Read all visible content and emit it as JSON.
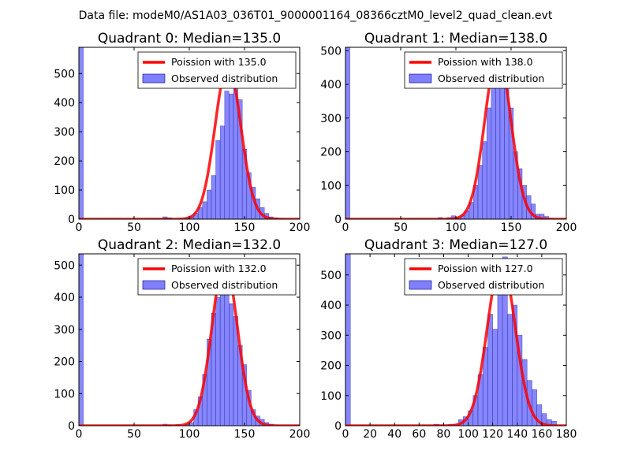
{
  "figure": {
    "suptitle": "Data file: modeM0/AS1A03_036T01_9000001164_08366cztM0_level2_quad_clean.evt"
  },
  "chart_data": [
    {
      "type": "bar",
      "title": "Quadrant 0: Median=135.0",
      "xlim": [
        0,
        200
      ],
      "ylim": [
        0,
        590
      ],
      "xticks": [
        0,
        50,
        100,
        150,
        200
      ],
      "xtick_labels": [
        "0",
        "50",
        "100",
        "150",
        "200"
      ],
      "yticks": [
        0,
        100,
        200,
        300,
        400,
        500
      ],
      "ytick_labels": [
        "0",
        "100",
        "200",
        "300",
        "400",
        "500"
      ],
      "legend": [
        "Poission with 135.0",
        "Observed distribution"
      ],
      "legend_position": "top-right",
      "bar_color": "#7f7fff",
      "line_color": "#ff0000",
      "bin_width": 4,
      "bins": [
        [
          0,
          590
        ],
        [
          76,
          8
        ],
        [
          80,
          5
        ],
        [
          96,
          3
        ],
        [
          100,
          8
        ],
        [
          104,
          20
        ],
        [
          108,
          40
        ],
        [
          112,
          60
        ],
        [
          116,
          100
        ],
        [
          120,
          150
        ],
        [
          124,
          270
        ],
        [
          128,
          320
        ],
        [
          132,
          440
        ],
        [
          136,
          430
        ],
        [
          140,
          500
        ],
        [
          144,
          410
        ],
        [
          148,
          240
        ],
        [
          152,
          160
        ],
        [
          156,
          110
        ],
        [
          160,
          70
        ],
        [
          164,
          40
        ],
        [
          168,
          20
        ],
        [
          172,
          8
        ],
        [
          176,
          5
        ],
        [
          180,
          2
        ]
      ],
      "poisson_mean": 135.0,
      "poisson_peak": 530
    },
    {
      "type": "bar",
      "title": "Quadrant 1: Median=138.0",
      "xlim": [
        0,
        200
      ],
      "ylim": [
        0,
        510
      ],
      "xticks": [
        0,
        50,
        100,
        150,
        200
      ],
      "xtick_labels": [
        "0",
        "50",
        "100",
        "150",
        "200"
      ],
      "yticks": [
        0,
        100,
        200,
        300,
        400,
        500
      ],
      "ytick_labels": [
        "0",
        "100",
        "200",
        "300",
        "400",
        "500"
      ],
      "legend": [
        "Poission with 138.0",
        "Observed distribution"
      ],
      "legend_position": "top-right",
      "bar_color": "#7f7fff",
      "line_color": "#ff0000",
      "bin_width": 4,
      "bins": [
        [
          0,
          510
        ],
        [
          84,
          5
        ],
        [
          92,
          5
        ],
        [
          96,
          10
        ],
        [
          100,
          5
        ],
        [
          104,
          12
        ],
        [
          108,
          25
        ],
        [
          112,
          50
        ],
        [
          116,
          100
        ],
        [
          120,
          160
        ],
        [
          124,
          230
        ],
        [
          128,
          330
        ],
        [
          132,
          430
        ],
        [
          136,
          470
        ],
        [
          140,
          430
        ],
        [
          144,
          490
        ],
        [
          148,
          330
        ],
        [
          152,
          200
        ],
        [
          156,
          150
        ],
        [
          160,
          100
        ],
        [
          164,
          70
        ],
        [
          168,
          45
        ],
        [
          172,
          15
        ],
        [
          176,
          15
        ],
        [
          180,
          8
        ],
        [
          184,
          3
        ]
      ],
      "poisson_mean": 138.0,
      "poisson_peak": 490
    },
    {
      "type": "bar",
      "title": "Quadrant 2: Median=132.0",
      "xlim": [
        0,
        200
      ],
      "ylim": [
        0,
        535
      ],
      "xticks": [
        0,
        50,
        100,
        150,
        200
      ],
      "xtick_labels": [
        "0",
        "50",
        "100",
        "150",
        "200"
      ],
      "yticks": [
        0,
        100,
        200,
        300,
        400,
        500
      ],
      "ytick_labels": [
        "0",
        "100",
        "200",
        "300",
        "400",
        "500"
      ],
      "legend": [
        "Poission with 132.0",
        "Observed distribution"
      ],
      "legend_position": "top-right",
      "bar_color": "#7f7fff",
      "line_color": "#ff0000",
      "bin_width": 4,
      "bins": [
        [
          0,
          535
        ],
        [
          76,
          5
        ],
        [
          80,
          3
        ],
        [
          88,
          3
        ],
        [
          96,
          5
        ],
        [
          100,
          10
        ],
        [
          104,
          50
        ],
        [
          108,
          90
        ],
        [
          112,
          160
        ],
        [
          116,
          270
        ],
        [
          120,
          350
        ],
        [
          124,
          400
        ],
        [
          128,
          460
        ],
        [
          132,
          520
        ],
        [
          136,
          380
        ],
        [
          140,
          340
        ],
        [
          144,
          250
        ],
        [
          148,
          190
        ],
        [
          152,
          110
        ],
        [
          156,
          50
        ],
        [
          160,
          30
        ],
        [
          164,
          20
        ],
        [
          168,
          10
        ],
        [
          172,
          5
        ]
      ],
      "poisson_mean": 132.0,
      "poisson_peak": 510
    },
    {
      "type": "bar",
      "title": "Quadrant 3: Median=127.0",
      "xlim": [
        0,
        180
      ],
      "ylim": [
        0,
        570
      ],
      "xticks": [
        0,
        20,
        40,
        60,
        80,
        100,
        120,
        140,
        160,
        180
      ],
      "xtick_labels": [
        "0",
        "20",
        "40",
        "60",
        "80",
        "100",
        "120",
        "140",
        "160",
        "180"
      ],
      "yticks": [
        0,
        100,
        200,
        300,
        400,
        500
      ],
      "ytick_labels": [
        "0",
        "100",
        "200",
        "300",
        "400",
        "500"
      ],
      "legend": [
        "Poission with 127.0",
        "Observed distribution"
      ],
      "legend_position": "top-right",
      "bar_color": "#7f7fff",
      "line_color": "#ff0000",
      "bin_width": 4,
      "bins": [
        [
          0,
          570
        ],
        [
          72,
          5
        ],
        [
          76,
          3
        ],
        [
          84,
          5
        ],
        [
          88,
          5
        ],
        [
          92,
          20
        ],
        [
          96,
          30
        ],
        [
          100,
          50
        ],
        [
          104,
          100
        ],
        [
          108,
          170
        ],
        [
          112,
          260
        ],
        [
          116,
          370
        ],
        [
          120,
          320
        ],
        [
          124,
          470
        ],
        [
          128,
          560
        ],
        [
          132,
          370
        ],
        [
          136,
          400
        ],
        [
          140,
          300
        ],
        [
          144,
          220
        ],
        [
          148,
          150
        ],
        [
          152,
          120
        ],
        [
          156,
          70
        ],
        [
          160,
          40
        ],
        [
          164,
          20
        ],
        [
          168,
          15
        ]
      ],
      "poisson_mean": 127.0,
      "poisson_peak": 545
    }
  ]
}
